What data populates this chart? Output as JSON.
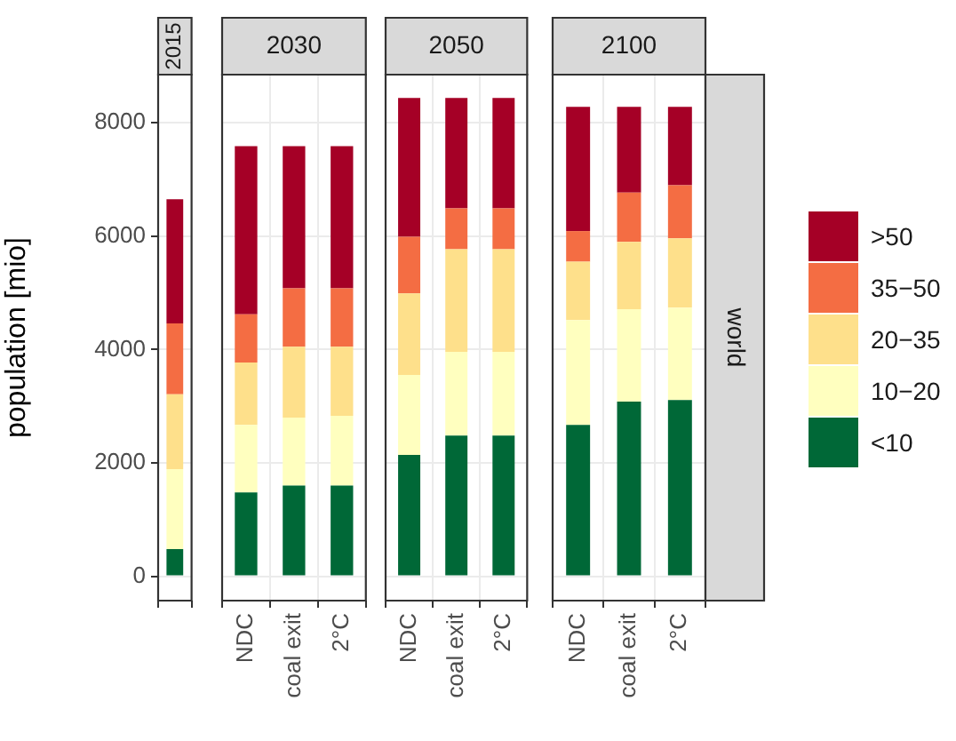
{
  "chart_data": [
    {
      "type": "bar",
      "title": "2015",
      "ylabel": "population [mio]",
      "categories": [
        null
      ],
      "stacked": true,
      "ylim": [
        -430,
        8850
      ],
      "yticks": [
        0,
        2000,
        4000,
        6000,
        8000
      ],
      "grid": true,
      "legend": false,
      "series": [
        {
          "color": "#006837",
          "values": [
            480
          ]
        },
        {
          "color": "#ffffbf",
          "values": [
            1410
          ]
        },
        {
          "color": "#fee08b",
          "values": [
            1320
          ]
        },
        {
          "color": "#f46d43",
          "values": [
            1250
          ]
        },
        {
          "color": "#a50026",
          "values": [
            2190
          ]
        }
      ]
    },
    {
      "type": "bar",
      "title": "2030",
      "categories": [
        "NDC",
        "coal exit",
        "2°C"
      ],
      "stacked": true,
      "ylim": [
        -430,
        8850
      ],
      "yticks": [
        0,
        2000,
        4000,
        6000,
        8000
      ],
      "tick_labels": "x",
      "grid": true,
      "legend": false,
      "series": [
        {
          "color": "#006837",
          "values": [
            1480,
            1600,
            1600
          ]
        },
        {
          "color": "#ffffbf",
          "values": [
            1190,
            1200,
            1230
          ]
        },
        {
          "color": "#fee08b",
          "values": [
            1100,
            1250,
            1220
          ]
        },
        {
          "color": "#f46d43",
          "values": [
            850,
            1030,
            1030
          ]
        },
        {
          "color": "#a50026",
          "values": [
            2970,
            2510,
            2510
          ]
        }
      ]
    },
    {
      "type": "bar",
      "title": "2050",
      "categories": [
        "NDC",
        "coal exit",
        "2°C"
      ],
      "stacked": true,
      "ylim": [
        -430,
        8850
      ],
      "yticks": [
        0,
        2000,
        4000,
        6000,
        8000
      ],
      "tick_labels": "x",
      "grid": true,
      "legend": false,
      "series": [
        {
          "color": "#006837",
          "values": [
            2140,
            2480,
            2480
          ]
        },
        {
          "color": "#ffffbf",
          "values": [
            1410,
            1480,
            1480
          ]
        },
        {
          "color": "#fee08b",
          "values": [
            1440,
            1810,
            1810
          ]
        },
        {
          "color": "#f46d43",
          "values": [
            1000,
            720,
            720
          ]
        },
        {
          "color": "#a50026",
          "values": [
            2450,
            1950,
            1950
          ]
        }
      ]
    },
    {
      "type": "bar",
      "title": "2100",
      "categories": [
        "NDC",
        "coal exit",
        "2°C"
      ],
      "stacked": true,
      "ylim": [
        -430,
        8850
      ],
      "yticks": [
        0,
        2000,
        4000,
        6000,
        8000
      ],
      "tick_labels": "x",
      "grid": true,
      "legend": "right",
      "annotations": [
        "world"
      ],
      "series": [
        {
          "name": "<10",
          "color": "#006837",
          "values": [
            2670,
            3080,
            3110
          ]
        },
        {
          "name": "10−20",
          "color": "#ffffbf",
          "values": [
            1850,
            1630,
            1630
          ]
        },
        {
          "name": "20−35",
          "color": "#fee08b",
          "values": [
            1030,
            1190,
            1220
          ]
        },
        {
          "name": "35−50",
          "color": "#f46d43",
          "values": [
            540,
            870,
            940
          ]
        },
        {
          "name": ">50",
          "color": "#a50026",
          "values": [
            2190,
            1510,
            1380
          ]
        }
      ]
    }
  ]
}
